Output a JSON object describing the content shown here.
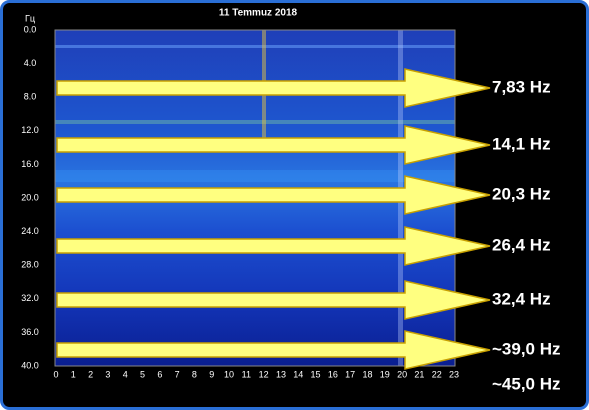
{
  "title": "11 Temmuz 2018",
  "y_unit": "Гц",
  "y_ticks": [
    "0.0",
    "4.0",
    "8.0",
    "12.0",
    "16.0",
    "20.0",
    "24.0",
    "28.0",
    "32.0",
    "36.0",
    "40.0"
  ],
  "x_ticks": [
    "0",
    "1",
    "2",
    "3",
    "4",
    "5",
    "6",
    "7",
    "8",
    "9",
    "10",
    "11",
    "12",
    "13",
    "14",
    "15",
    "16",
    "17",
    "18",
    "19",
    "20",
    "21",
    "22",
    "23"
  ],
  "labels": [
    "7,83 Hz",
    "14,1 Hz",
    "20,3 Hz",
    "26,4 Hz",
    "32,4 Hz",
    "~39,0 Hz",
    "~45,0 Hz"
  ]
}
